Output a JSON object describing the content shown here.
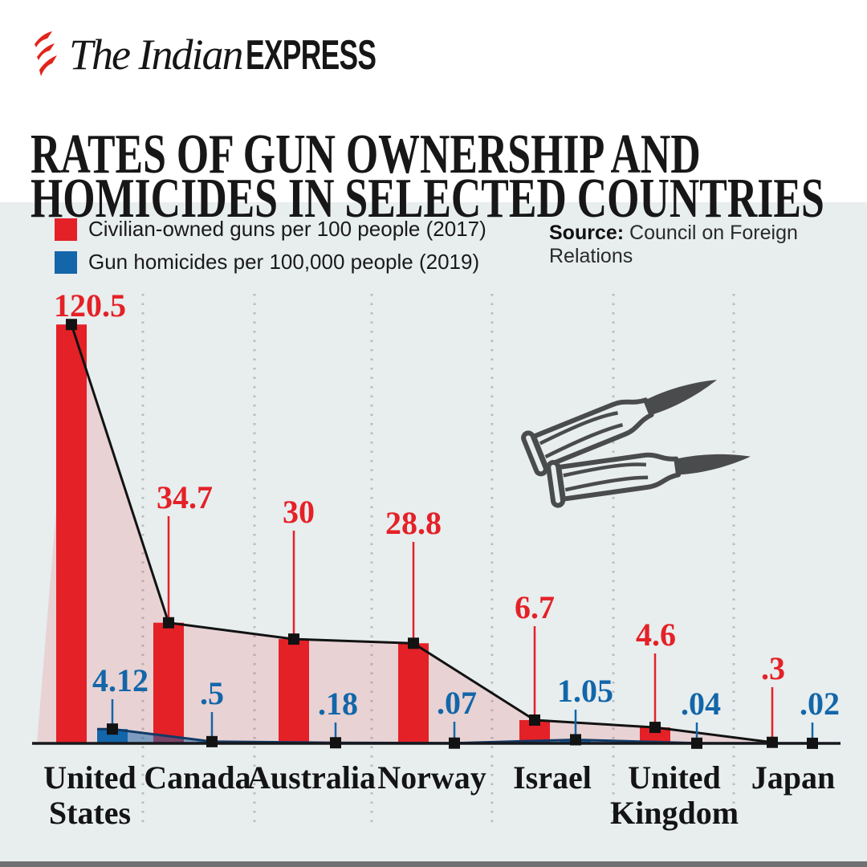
{
  "logo": {
    "masthead_serif": "The Indian",
    "masthead_sans": "EXPRESS"
  },
  "title": {
    "line1": "RATES OF GUN OWNERSHIP AND",
    "line2": "HOMICIDES IN SELECTED COUNTRIES"
  },
  "legend": {
    "items": [
      {
        "label": "Civilian-owned guns per 100 people (2017)",
        "color": "#e42127"
      },
      {
        "label": "Gun homicides per 100,000 people (2019)",
        "color": "#1266a9"
      }
    ]
  },
  "source": {
    "prefix": "Source:",
    "text": "Council on Foreign Relations"
  },
  "chart_data": {
    "type": "bar",
    "title": "Rates of gun ownership and homicides in selected countries",
    "categories": [
      "United States",
      "Canada",
      "Australia",
      "Norway",
      "Israel",
      "United Kingdom",
      "Japan"
    ],
    "category_lines": [
      [
        "United",
        "States"
      ],
      [
        "Canada"
      ],
      [
        "Australia"
      ],
      [
        "Norway"
      ],
      [
        "Israel"
      ],
      [
        "United",
        "Kingdom"
      ],
      [
        "Japan"
      ]
    ],
    "series": [
      {
        "name": "Civilian-owned guns per 100 people (2017)",
        "color": "#e42127",
        "values": [
          120.5,
          34.7,
          30,
          28.8,
          6.7,
          4.6,
          0.3
        ],
        "labels": [
          "120.5",
          "34.7",
          "30",
          "28.8",
          "6.7",
          "4.6",
          ".3"
        ]
      },
      {
        "name": "Gun homicides per 100,000 people (2019)",
        "color": "#1266a9",
        "values": [
          4.12,
          0.5,
          0.18,
          0.07,
          1.05,
          0.04,
          0.02
        ],
        "labels": [
          "4.12",
          ".5",
          ".18",
          ".07",
          "1.05",
          ".04",
          ".02"
        ]
      }
    ],
    "ylim": [
      0,
      125
    ],
    "grid": "dotted-vertical-between-categories",
    "legend_position": "top-left",
    "annotations": "black square markers on every value, connecting line over gun-ownership series, shaded area fills under both series"
  },
  "colors": {
    "accent_red": "#e42127",
    "accent_blue": "#1266a9",
    "guns_area_fill": "rgba(228,33,39,0.13)",
    "homicides_area_fill": "rgba(18,102,169,0.5)",
    "homicides_edge_line": "#123a66",
    "series_line": "#121212",
    "baseline": "#16181d",
    "marker": "#121212",
    "gridline": "#b7bdbf",
    "panel_background": "#e8edee",
    "bullet_gray": "#4a4b4d",
    "bottom_strip": "#6e7072",
    "logo_red": "#e1251b",
    "text_black": "#141414"
  }
}
